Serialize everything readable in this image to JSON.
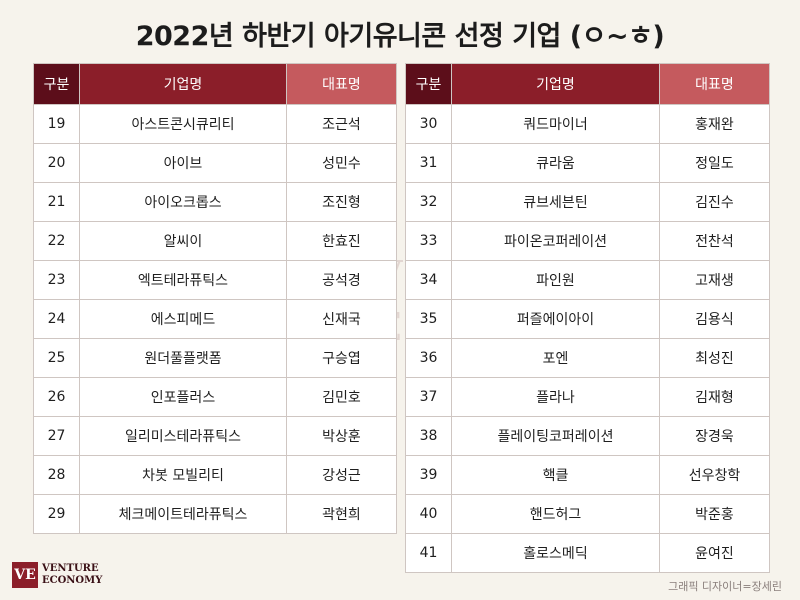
{
  "title": "2022년 하반기 아기유니콘 선정 기업 (ㅇ~ㅎ)",
  "headers": {
    "no": "구분",
    "company": "기업명",
    "ceo": "대표명"
  },
  "left_rows": [
    {
      "no": "19",
      "company": "아스트콘시큐리티",
      "ceo": "조근석"
    },
    {
      "no": "20",
      "company": "아이브",
      "ceo": "성민수"
    },
    {
      "no": "21",
      "company": "아이오크롭스",
      "ceo": "조진형"
    },
    {
      "no": "22",
      "company": "알씨이",
      "ceo": "한효진"
    },
    {
      "no": "23",
      "company": "엑트테라퓨틱스",
      "ceo": "공석경"
    },
    {
      "no": "24",
      "company": "에스피메드",
      "ceo": "신재국"
    },
    {
      "no": "25",
      "company": "원더풀플랫폼",
      "ceo": "구승엽"
    },
    {
      "no": "26",
      "company": "인포플러스",
      "ceo": "김민호"
    },
    {
      "no": "27",
      "company": "일리미스테라퓨틱스",
      "ceo": "박상훈"
    },
    {
      "no": "28",
      "company": "차봇 모빌리티",
      "ceo": "강성근"
    },
    {
      "no": "29",
      "company": "체크메이트테라퓨틱스",
      "ceo": "곽현희"
    }
  ],
  "right_rows": [
    {
      "no": "30",
      "company": "쿼드마이너",
      "ceo": "홍재완"
    },
    {
      "no": "31",
      "company": "큐라움",
      "ceo": "정일도"
    },
    {
      "no": "32",
      "company": "큐브세븐틴",
      "ceo": "김진수"
    },
    {
      "no": "33",
      "company": "파이온코퍼레이션",
      "ceo": "전찬석"
    },
    {
      "no": "34",
      "company": "파인원",
      "ceo": "고재생"
    },
    {
      "no": "35",
      "company": "퍼즐에이아이",
      "ceo": "김용식"
    },
    {
      "no": "36",
      "company": "포엔",
      "ceo": "최성진"
    },
    {
      "no": "37",
      "company": "플라나",
      "ceo": "김재형"
    },
    {
      "no": "38",
      "company": "플레이팅코퍼레이션",
      "ceo": "장경욱"
    },
    {
      "no": "39",
      "company": "핵클",
      "ceo": "선우창학"
    },
    {
      "no": "40",
      "company": "핸드허그",
      "ceo": "박준홍"
    },
    {
      "no": "41",
      "company": "홀로스메딕",
      "ceo": "윤여진"
    }
  ],
  "watermark": {
    "mono": "VE",
    "line1": "VENTURE",
    "line2": "ECONOMY"
  },
  "logo": {
    "mono": "VE",
    "line1": "VENTURE",
    "line2": "ECONOMY"
  },
  "credit": "그래픽 디자이너=장세린",
  "colors": {
    "header_dark": "#5c0e1a",
    "header_main": "#8b1e29",
    "header_light": "#c55a5e",
    "background": "#f6f3ec"
  }
}
